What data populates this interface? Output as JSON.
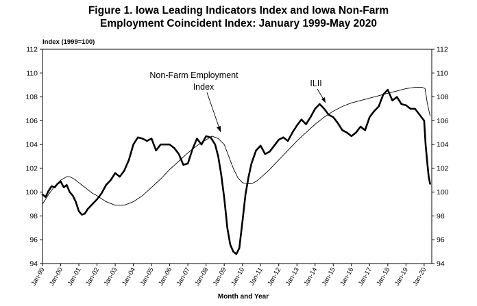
{
  "title_line1": "Figure 1. Iowa Leading Indicators Index and Iowa Non-Farm",
  "title_line2": "Employment Coincident Index: January 1999-May 2020",
  "chart_data": {
    "type": "line",
    "title": "Figure 1. Iowa Leading Indicators Index and Iowa Non-Farm Employment Coincident Index: January 1999-May 2020",
    "ylabel": "Index (1999=100)",
    "xlabel": "Month and Year",
    "ylim": [
      94,
      112
    ],
    "yticks": [
      94,
      96,
      98,
      100,
      102,
      104,
      106,
      108,
      110,
      112
    ],
    "right_axis_mirrors_left": true,
    "grid": false,
    "legend": "inline annotations",
    "x_tick_labels": [
      "Jan-99",
      "Jan-00",
      "Jan-01",
      "Jan-02",
      "Jan-03",
      "Jan-04",
      "Jan-05",
      "Jan-06",
      "Jan-07",
      "Jan-08",
      "Jan-09",
      "Jan-10",
      "Jan-11",
      "Jan-12",
      "Jan-13",
      "Jan-14",
      "Jan-15",
      "Jan-16",
      "Jan-17",
      "Jan-18",
      "Jan-19",
      "Jan-20"
    ],
    "annotations": [
      {
        "lines": [
          "Non-Farm Employment",
          "Index"
        ],
        "series": "Non-Farm Employment Index"
      },
      {
        "lines": [
          "ILII"
        ],
        "series": "ILII"
      }
    ],
    "series": [
      {
        "name": "ILII",
        "style": "thick",
        "x": [
          1999.0,
          1999.17,
          1999.33,
          1999.5,
          1999.67,
          1999.83,
          2000.0,
          2000.17,
          2000.33,
          2000.5,
          2000.67,
          2000.83,
          2001.0,
          2001.17,
          2001.33,
          2001.5,
          2001.75,
          2002.0,
          2002.25,
          2002.5,
          2002.75,
          2003.0,
          2003.25,
          2003.5,
          2003.75,
          2004.0,
          2004.25,
          2004.5,
          2004.75,
          2005.0,
          2005.25,
          2005.5,
          2005.75,
          2006.0,
          2006.25,
          2006.5,
          2006.75,
          2007.0,
          2007.25,
          2007.5,
          2007.75,
          2008.0,
          2008.25,
          2008.5,
          2008.67,
          2008.83,
          2009.0,
          2009.17,
          2009.33,
          2009.5,
          2009.67,
          2009.83,
          2010.0,
          2010.17,
          2010.33,
          2010.5,
          2010.75,
          2011.0,
          2011.25,
          2011.5,
          2011.75,
          2012.0,
          2012.25,
          2012.5,
          2012.75,
          2013.0,
          2013.25,
          2013.5,
          2013.75,
          2014.0,
          2014.25,
          2014.5,
          2014.75,
          2015.0,
          2015.25,
          2015.5,
          2015.75,
          2016.0,
          2016.25,
          2016.5,
          2016.75,
          2017.0,
          2017.25,
          2017.5,
          2017.75,
          2018.0,
          2018.25,
          2018.5,
          2018.75,
          2019.0,
          2019.25,
          2019.5,
          2019.75,
          2020.0,
          2020.08,
          2020.17,
          2020.25,
          2020.33
        ],
        "y": [
          99.8,
          99.6,
          100.1,
          100.5,
          100.4,
          100.7,
          100.9,
          100.4,
          100.6,
          100.0,
          99.7,
          99.2,
          98.4,
          98.1,
          98.2,
          98.6,
          99.0,
          99.4,
          99.9,
          100.6,
          101.0,
          101.6,
          101.3,
          101.8,
          102.7,
          104.0,
          104.6,
          104.5,
          104.3,
          104.5,
          103.5,
          104.0,
          104.0,
          104.0,
          103.7,
          103.2,
          102.3,
          102.4,
          103.6,
          104.5,
          104.0,
          104.7,
          104.6,
          104.0,
          103.0,
          101.5,
          99.5,
          97.0,
          95.6,
          95.0,
          94.8,
          95.3,
          97.5,
          99.8,
          101.2,
          102.4,
          103.5,
          103.9,
          103.2,
          103.4,
          103.9,
          104.4,
          104.6,
          104.3,
          105.0,
          105.6,
          106.1,
          105.7,
          106.3,
          107.0,
          107.4,
          107.0,
          106.5,
          106.3,
          105.8,
          105.2,
          105.0,
          104.7,
          105.0,
          105.5,
          105.2,
          106.3,
          106.8,
          107.2,
          108.2,
          108.6,
          107.7,
          108.0,
          107.4,
          107.3,
          107.0,
          107.0,
          106.5,
          106.0,
          104.0,
          102.5,
          101.3,
          100.7
        ]
      },
      {
        "name": "Non-Farm Employment Index",
        "style": "thin",
        "x": [
          1999.0,
          1999.33,
          1999.67,
          2000.0,
          2000.33,
          2000.5,
          2000.75,
          2001.0,
          2001.25,
          2001.5,
          2001.75,
          2002.0,
          2002.5,
          2003.0,
          2003.5,
          2004.0,
          2004.5,
          2005.0,
          2005.5,
          2006.0,
          2006.5,
          2007.0,
          2007.5,
          2008.0,
          2008.33,
          2008.67,
          2009.0,
          2009.25,
          2009.5,
          2009.75,
          2010.0,
          2010.25,
          2010.5,
          2010.75,
          2011.0,
          2011.5,
          2012.0,
          2012.5,
          2013.0,
          2013.5,
          2014.0,
          2014.5,
          2015.0,
          2015.5,
          2016.0,
          2016.5,
          2017.0,
          2017.5,
          2018.0,
          2018.5,
          2019.0,
          2019.5,
          2019.9,
          2020.05,
          2020.17,
          2020.33
        ],
        "y": [
          99.0,
          99.8,
          100.5,
          101.0,
          101.3,
          101.3,
          101.1,
          100.8,
          100.5,
          100.2,
          99.9,
          99.7,
          99.2,
          98.9,
          98.9,
          99.2,
          99.7,
          100.4,
          101.1,
          101.9,
          102.6,
          103.3,
          103.9,
          104.4,
          104.7,
          104.5,
          104.0,
          103.0,
          102.0,
          101.2,
          100.8,
          100.7,
          100.7,
          100.9,
          101.2,
          101.9,
          102.7,
          103.5,
          104.3,
          105.0,
          105.7,
          106.3,
          106.8,
          107.2,
          107.5,
          107.7,
          107.9,
          108.1,
          108.3,
          108.5,
          108.7,
          108.8,
          108.8,
          108.7,
          107.5,
          106.4
        ]
      }
    ]
  }
}
